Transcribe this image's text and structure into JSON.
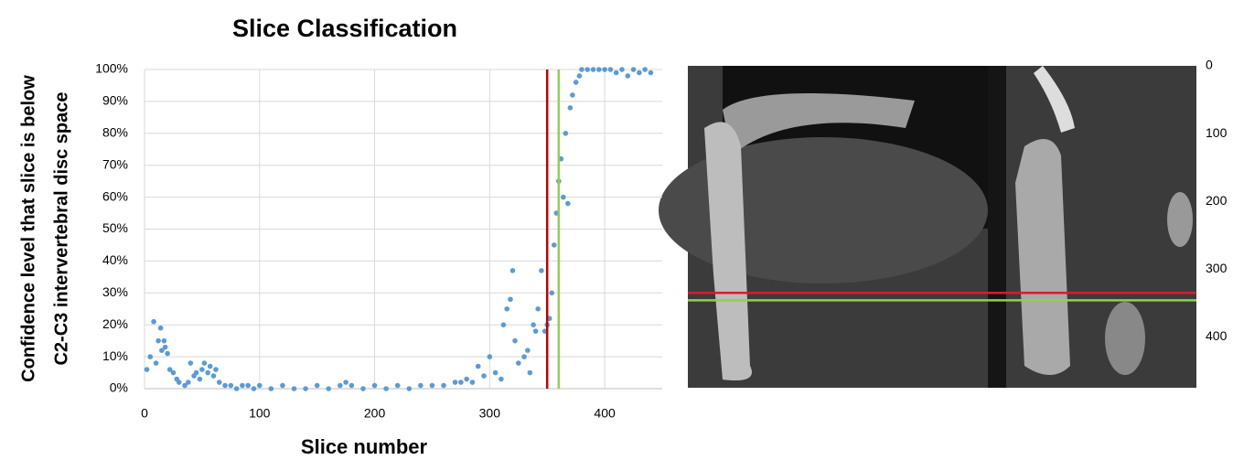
{
  "chart_data": {
    "type": "scatter",
    "title": "Slice Classification",
    "x_label": "Slice number",
    "y_label": [
      "Confidence level that slice is below",
      "C2-C3 intervertebral disc space"
    ],
    "color": "#5b9bd5",
    "x": [
      2,
      5,
      8,
      10,
      12,
      14,
      15,
      17,
      18,
      20,
      22,
      25,
      28,
      30,
      35,
      38,
      40,
      43,
      45,
      48,
      50,
      52,
      55,
      57,
      60,
      62,
      65,
      70,
      75,
      80,
      85,
      90,
      95,
      100,
      110,
      120,
      130,
      140,
      150,
      160,
      170,
      175,
      180,
      190,
      200,
      210,
      220,
      230,
      240,
      250,
      260,
      270,
      275,
      280,
      285,
      290,
      295,
      300,
      305,
      310,
      312,
      315,
      318,
      320,
      322,
      325,
      330,
      333,
      335,
      338,
      340,
      342,
      345,
      348,
      350,
      352,
      354,
      356,
      358,
      360,
      362,
      364,
      366,
      368,
      370,
      372,
      375,
      378,
      380,
      385,
      390,
      395,
      400,
      405,
      410,
      415,
      420,
      425,
      430,
      435,
      440
    ],
    "values": [
      6,
      10,
      21,
      8,
      15,
      19,
      12,
      15,
      13,
      11,
      6,
      5,
      3,
      2,
      1,
      2,
      8,
      4,
      5,
      3,
      6,
      8,
      5,
      7,
      4,
      6,
      2,
      1,
      1,
      0,
      1,
      1,
      0,
      1,
      0,
      1,
      0,
      0,
      1,
      0,
      1,
      2,
      1,
      0,
      1,
      0,
      1,
      0,
      1,
      1,
      1,
      2,
      2,
      3,
      2,
      7,
      4,
      10,
      5,
      3,
      20,
      25,
      28,
      37,
      15,
      8,
      10,
      12,
      5,
      20,
      18,
      25,
      37,
      18,
      20,
      22,
      30,
      45,
      55,
      65,
      72,
      60,
      80,
      58,
      88,
      92,
      96,
      98,
      100,
      100,
      100,
      100,
      100,
      100,
      99,
      100,
      98,
      100,
      99,
      100,
      99
    ],
    "xlim": [
      0,
      450
    ],
    "xticks": [
      0,
      100,
      200,
      300,
      400
    ],
    "ylim": [
      0,
      100
    ],
    "yticks": [
      {
        "value": 0,
        "label": "0%"
      },
      {
        "value": 10,
        "label": "10%"
      },
      {
        "value": 20,
        "label": "20%"
      },
      {
        "value": 30,
        "label": "30%"
      },
      {
        "value": 40,
        "label": "40%"
      },
      {
        "value": 50,
        "label": "50%"
      },
      {
        "value": 60,
        "label": "60%"
      },
      {
        "value": 70,
        "label": "70%"
      },
      {
        "value": 80,
        "label": "80%"
      },
      {
        "value": 90,
        "label": "90%"
      },
      {
        "value": 100,
        "label": "100%"
      }
    ],
    "grid": true,
    "vlines": [
      {
        "value": 350,
        "color": "#c00000"
      },
      {
        "value": 360,
        "color": "#92d050"
      }
    ]
  },
  "image_panel": {
    "ylim": [
      0,
      475
    ],
    "yticks": [
      0,
      100,
      200,
      300,
      400
    ],
    "hlines": [
      {
        "value": 335,
        "color": "#d0202a"
      },
      {
        "value": 346,
        "color": "#8fd14f"
      }
    ]
  }
}
